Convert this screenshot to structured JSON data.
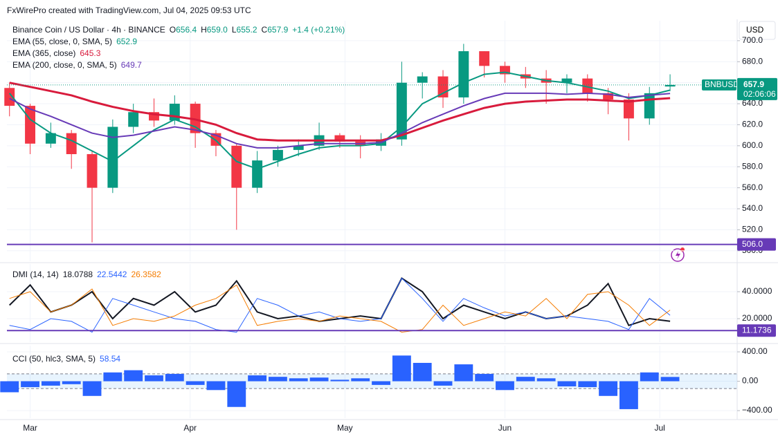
{
  "header": "FxWirePro created with TradingView.com, Jul 04, 2025 09:53 UTC",
  "currency": "USD",
  "chart_data": [
    {
      "type": "candlestick",
      "title": "Binance Coin / US Dollar · 4h · BINANCE",
      "quote": [
        {
          "label": "O",
          "value": "656.4"
        },
        {
          "label": "H",
          "value": "659.0"
        },
        {
          "label": "L",
          "value": "655.2"
        },
        {
          "label": "C",
          "value": "657.9"
        }
      ],
      "change": "+1.4 (+0.21%)",
      "x": [
        -4,
        0,
        4,
        8,
        12,
        16,
        20,
        24,
        28,
        32,
        36,
        40,
        44,
        48,
        52,
        56,
        60,
        64,
        68,
        72,
        76,
        80,
        84,
        88,
        92,
        96,
        100,
        104,
        108,
        112,
        116,
        120,
        124
      ],
      "open": [
        655,
        638,
        602,
        612,
        592,
        560,
        618,
        632,
        624,
        640,
        612,
        600,
        560,
        586,
        596,
        600,
        610,
        604,
        600,
        606,
        660,
        666,
        646,
        690,
        676,
        668,
        664,
        660,
        664,
        650,
        644,
        626,
        656.4
      ],
      "high": [
        660,
        640,
        622,
        615,
        595,
        625,
        640,
        645,
        648,
        642,
        615,
        602,
        595,
        600,
        606,
        622,
        612,
        610,
        612,
        680,
        670,
        672,
        697,
        690,
        680,
        675,
        672,
        668,
        668,
        655,
        650,
        656,
        668
      ],
      "low": [
        628,
        592,
        598,
        578,
        508,
        555,
        612,
        618,
        620,
        598,
        590,
        520,
        555,
        580,
        590,
        596,
        598,
        588,
        595,
        600,
        645,
        636,
        640,
        665,
        660,
        655,
        640,
        650,
        642,
        630,
        605,
        620,
        652
      ],
      "close": [
        638,
        602,
        612,
        592,
        560,
        618,
        632,
        624,
        640,
        612,
        600,
        560,
        586,
        596,
        600,
        610,
        604,
        600,
        606,
        660,
        666,
        646,
        690,
        676,
        668,
        664,
        660,
        664,
        650,
        644,
        626,
        650,
        657.9
      ],
      "up_color": "#089981",
      "down_color": "#f23645",
      "series": [
        {
          "name": "EMA (55, close, 0, SMA, 5)",
          "color": "#089981",
          "last_value": 652.9,
          "values": [
            650,
            625,
            612,
            605,
            595,
            585,
            600,
            615,
            625,
            618,
            605,
            585,
            578,
            585,
            592,
            598,
            600,
            600,
            602,
            618,
            640,
            650,
            660,
            668,
            670,
            666,
            662,
            660,
            656,
            652,
            645,
            648,
            652.9
          ]
        },
        {
          "name": "EMA (365, close)",
          "color": "#d81b3c",
          "last_value": 645.3,
          "values": [
            660,
            656,
            652,
            648,
            642,
            637,
            633,
            630,
            628,
            625,
            620,
            612,
            606,
            605,
            605,
            605,
            605,
            605,
            605,
            610,
            617,
            624,
            630,
            636,
            640,
            642,
            643,
            644,
            644,
            643,
            642,
            644,
            645.3
          ]
        },
        {
          "name": "EMA (200, close, 0, SMA, 5)",
          "color": "#673ab7",
          "last_value": 649.7,
          "values": [
            645,
            635,
            628,
            620,
            612,
            608,
            610,
            614,
            618,
            615,
            610,
            602,
            598,
            598,
            600,
            602,
            602,
            602,
            603,
            612,
            622,
            630,
            638,
            645,
            650,
            650,
            650,
            649,
            650,
            649,
            646,
            648,
            649.7
          ]
        }
      ],
      "hline": {
        "value": 506,
        "label": "506.0",
        "color": "#673ab7"
      },
      "symbol": "BNBUSD",
      "last_price": 657.9,
      "countdown": "02:06:06",
      "xlim": [
        -4.5,
        137
      ],
      "xticks": [
        {
          "value": 0,
          "label": "Mar"
        },
        {
          "value": 31,
          "label": "Apr"
        },
        {
          "value": 61,
          "label": "May"
        },
        {
          "value": 92,
          "label": "Jun"
        },
        {
          "value": 122,
          "label": "Jul"
        }
      ],
      "ylim": [
        490,
        719
      ],
      "yticks": [
        {
          "value": 500,
          "label": "500.0"
        },
        {
          "value": 520,
          "label": "520.0"
        },
        {
          "value": 540,
          "label": "540.0"
        },
        {
          "value": 560,
          "label": "560.0"
        },
        {
          "value": 580,
          "label": "580.0"
        },
        {
          "value": 600,
          "label": "600.0"
        },
        {
          "value": 620,
          "label": "620.0"
        },
        {
          "value": 640,
          "label": "640.0"
        },
        {
          "value": 660,
          "label": "660.0"
        },
        {
          "value": 680,
          "label": "680.0"
        },
        {
          "value": 700,
          "label": "700.0"
        }
      ],
      "grid": true
    },
    {
      "type": "line",
      "title": "DMI (14, 14)",
      "x": [
        -4,
        0,
        4,
        8,
        12,
        16,
        20,
        24,
        28,
        32,
        36,
        40,
        44,
        48,
        52,
        56,
        60,
        64,
        68,
        72,
        76,
        80,
        84,
        88,
        92,
        96,
        100,
        104,
        108,
        112,
        116,
        120,
        124
      ],
      "series": [
        {
          "color": "#131722",
          "last_value": 18.0788,
          "width": 2,
          "values": [
            30,
            45,
            25,
            30,
            40,
            20,
            35,
            30,
            40,
            25,
            30,
            48,
            25,
            20,
            22,
            18,
            20,
            22,
            20,
            50,
            40,
            20,
            30,
            25,
            20,
            25,
            20,
            22,
            30,
            46,
            15,
            20,
            18.0788
          ]
        },
        {
          "color": "#2962ff",
          "last_value": 22.5442,
          "width": 1,
          "values": [
            15,
            12,
            20,
            18,
            10,
            35,
            30,
            25,
            20,
            18,
            12,
            10,
            35,
            30,
            22,
            25,
            20,
            18,
            20,
            50,
            35,
            18,
            35,
            28,
            22,
            25,
            20,
            22,
            20,
            18,
            12,
            35,
            22.5442
          ]
        },
        {
          "color": "#f57c00",
          "last_value": 26.3582,
          "width": 1,
          "values": [
            35,
            40,
            25,
            30,
            42,
            15,
            20,
            18,
            22,
            30,
            35,
            45,
            15,
            18,
            20,
            18,
            22,
            20,
            18,
            10,
            12,
            30,
            15,
            20,
            25,
            22,
            35,
            20,
            38,
            40,
            30,
            15,
            26.3582
          ]
        }
      ],
      "hline": {
        "value": 11.1736,
        "color": "#673ab7"
      },
      "xlim": [
        -4.5,
        137
      ],
      "ylim": [
        2.6,
        60.5
      ],
      "yticks": [
        {
          "value": 20,
          "label": "20.0000"
        },
        {
          "value": 40,
          "label": "40.0000"
        }
      ],
      "grid": true
    },
    {
      "type": "bar",
      "title": "CCI (50, hlc3, SMA, 5)",
      "last_value": 58.54,
      "color": "#2962ff",
      "x": [
        -4,
        0,
        4,
        8,
        12,
        16,
        20,
        24,
        28,
        32,
        36,
        40,
        44,
        48,
        52,
        56,
        60,
        64,
        68,
        72,
        76,
        80,
        84,
        88,
        92,
        96,
        100,
        104,
        108,
        112,
        116,
        120,
        124
      ],
      "values": [
        -150,
        -80,
        -60,
        -40,
        -200,
        120,
        150,
        80,
        100,
        -50,
        -120,
        -350,
        80,
        60,
        40,
        50,
        20,
        40,
        -50,
        350,
        250,
        -60,
        230,
        100,
        -120,
        60,
        40,
        -70,
        -80,
        -200,
        -380,
        120,
        58.54
      ],
      "band": [
        -100,
        100
      ],
      "xlim": [
        -4.5,
        137
      ],
      "ylim": [
        -503,
        485
      ],
      "yticks": [
        {
          "value": 400,
          "label": "400.00"
        },
        {
          "value": 0,
          "label": "0.00"
        },
        {
          "value": -400,
          "label": "−400.00"
        }
      ],
      "grid": true
    }
  ]
}
